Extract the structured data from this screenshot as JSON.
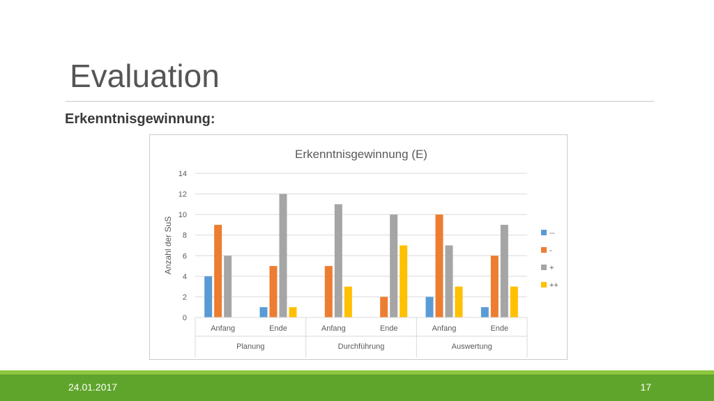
{
  "slide": {
    "title": "Evaluation",
    "subtitle": "Erkenntnisgewinnung:",
    "date": "24.01.2017",
    "page": "17"
  },
  "colors": {
    "footer": "#5fa52c",
    "footer_light": "#8dc63f"
  },
  "chart_data": {
    "type": "bar",
    "title": "Erkenntnisgewinnung (E)",
    "xlabel": "",
    "ylabel": "Anzahl der SuS",
    "ylim": [
      0,
      14
    ],
    "yticks": [
      0,
      2,
      4,
      6,
      8,
      10,
      12,
      14
    ],
    "grid": true,
    "legend_position": "right",
    "groups": [
      {
        "name": "Planung",
        "categories": [
          "Anfang",
          "Ende"
        ]
      },
      {
        "name": "Durchführung",
        "categories": [
          "Anfang",
          "Ende"
        ]
      },
      {
        "name": "Auswertung",
        "categories": [
          "Anfang",
          "Ende"
        ]
      }
    ],
    "categories": [
      "Anfang",
      "Ende",
      "Anfang",
      "Ende",
      "Anfang",
      "Ende"
    ],
    "series": [
      {
        "name": "--",
        "color": "#5b9bd5",
        "values": [
          4,
          1,
          0,
          0,
          2,
          1
        ]
      },
      {
        "name": "-",
        "color": "#ed7d31",
        "values": [
          9,
          5,
          5,
          2,
          10,
          6
        ]
      },
      {
        "name": "+",
        "color": "#a5a5a5",
        "values": [
          6,
          12,
          11,
          10,
          7,
          9
        ]
      },
      {
        "name": "++",
        "color": "#ffc000",
        "values": [
          0,
          1,
          3,
          7,
          3,
          3
        ]
      }
    ]
  }
}
